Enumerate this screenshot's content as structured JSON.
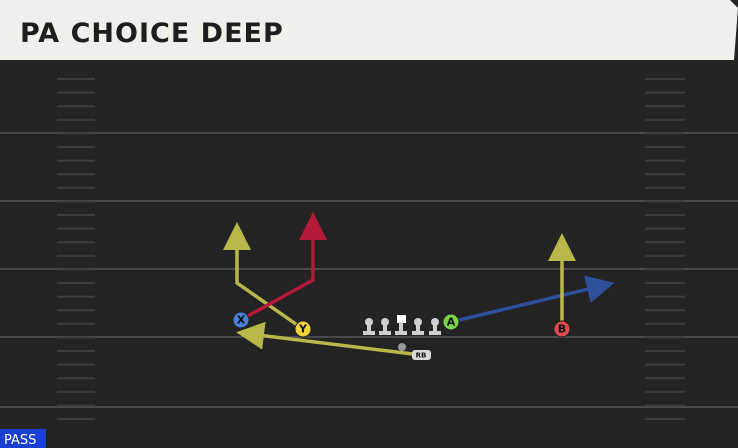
{
  "header": {
    "title": "PA CHOICE DEEP"
  },
  "badge": "PASS",
  "players": {
    "x": "X",
    "y": "Y",
    "a": "A",
    "b": "B",
    "rb": "RB"
  }
}
